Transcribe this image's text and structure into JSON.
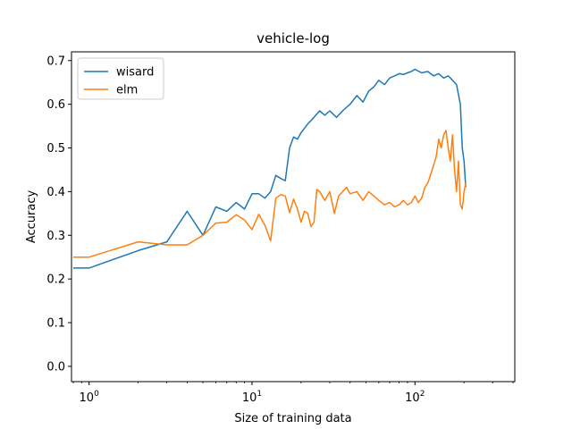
{
  "chart_data": {
    "type": "line",
    "title": "vehicle-log",
    "xlabel": "Size of training data",
    "ylabel": "Accuracy",
    "xscale": "log",
    "xlim": [
      0.78,
      410
    ],
    "ylim": [
      -0.035,
      0.72
    ],
    "xticks": [
      {
        "value": 1,
        "base": "10",
        "exp": "0"
      },
      {
        "value": 10,
        "base": "10",
        "exp": "1"
      },
      {
        "value": 100,
        "base": "10",
        "exp": "2"
      }
    ],
    "yticks": [
      "0.0",
      "0.1",
      "0.2",
      "0.3",
      "0.4",
      "0.5",
      "0.6",
      "0.7"
    ],
    "legend_position": "top-left",
    "series": [
      {
        "name": "wisard",
        "color": "#1f77b4",
        "x": [
          0.8,
          1,
          2,
          3,
          4,
          5,
          6,
          7,
          8,
          9,
          10,
          11,
          12,
          13,
          14,
          15,
          16,
          17,
          18,
          19,
          20,
          22,
          24,
          26,
          28,
          30,
          33,
          36,
          40,
          44,
          48,
          52,
          56,
          60,
          65,
          70,
          75,
          80,
          85,
          90,
          95,
          100,
          110,
          120,
          130,
          140,
          150,
          160,
          170,
          180,
          190,
          195,
          200,
          205
        ],
        "y": [
          0.225,
          0.225,
          0.265,
          0.285,
          0.355,
          0.3,
          0.365,
          0.355,
          0.375,
          0.36,
          0.395,
          0.395,
          0.385,
          0.4,
          0.437,
          0.43,
          0.425,
          0.5,
          0.525,
          0.52,
          0.535,
          0.555,
          0.57,
          0.585,
          0.575,
          0.585,
          0.57,
          0.585,
          0.6,
          0.62,
          0.605,
          0.63,
          0.64,
          0.655,
          0.645,
          0.66,
          0.665,
          0.67,
          0.668,
          0.672,
          0.675,
          0.68,
          0.672,
          0.675,
          0.665,
          0.67,
          0.66,
          0.665,
          0.655,
          0.645,
          0.6,
          0.5,
          0.47,
          0.41
        ]
      },
      {
        "name": "elm",
        "color": "#ff7f0e",
        "x": [
          0.8,
          1,
          2,
          3,
          4,
          5,
          6,
          7,
          8,
          9,
          10,
          11,
          12,
          13,
          14,
          15,
          16,
          17,
          18,
          19,
          20,
          21,
          22,
          23,
          24,
          25,
          26,
          27,
          28,
          30,
          32,
          34,
          36,
          38,
          40,
          44,
          48,
          52,
          56,
          60,
          65,
          70,
          75,
          80,
          85,
          90,
          95,
          100,
          105,
          110,
          115,
          120,
          125,
          130,
          135,
          140,
          145,
          150,
          155,
          160,
          165,
          170,
          175,
          180,
          185,
          190,
          195,
          200,
          205
        ],
        "y": [
          0.25,
          0.25,
          0.285,
          0.278,
          0.278,
          0.3,
          0.328,
          0.33,
          0.347,
          0.335,
          0.313,
          0.348,
          0.323,
          0.287,
          0.385,
          0.393,
          0.39,
          0.352,
          0.383,
          0.36,
          0.33,
          0.355,
          0.35,
          0.32,
          0.33,
          0.405,
          0.4,
          0.39,
          0.38,
          0.4,
          0.35,
          0.39,
          0.4,
          0.41,
          0.395,
          0.4,
          0.38,
          0.4,
          0.39,
          0.38,
          0.37,
          0.375,
          0.365,
          0.37,
          0.38,
          0.37,
          0.375,
          0.39,
          0.375,
          0.385,
          0.41,
          0.42,
          0.44,
          0.46,
          0.48,
          0.52,
          0.5,
          0.53,
          0.54,
          0.5,
          0.47,
          0.53,
          0.45,
          0.4,
          0.47,
          0.37,
          0.36,
          0.4,
          0.42
        ]
      }
    ]
  }
}
